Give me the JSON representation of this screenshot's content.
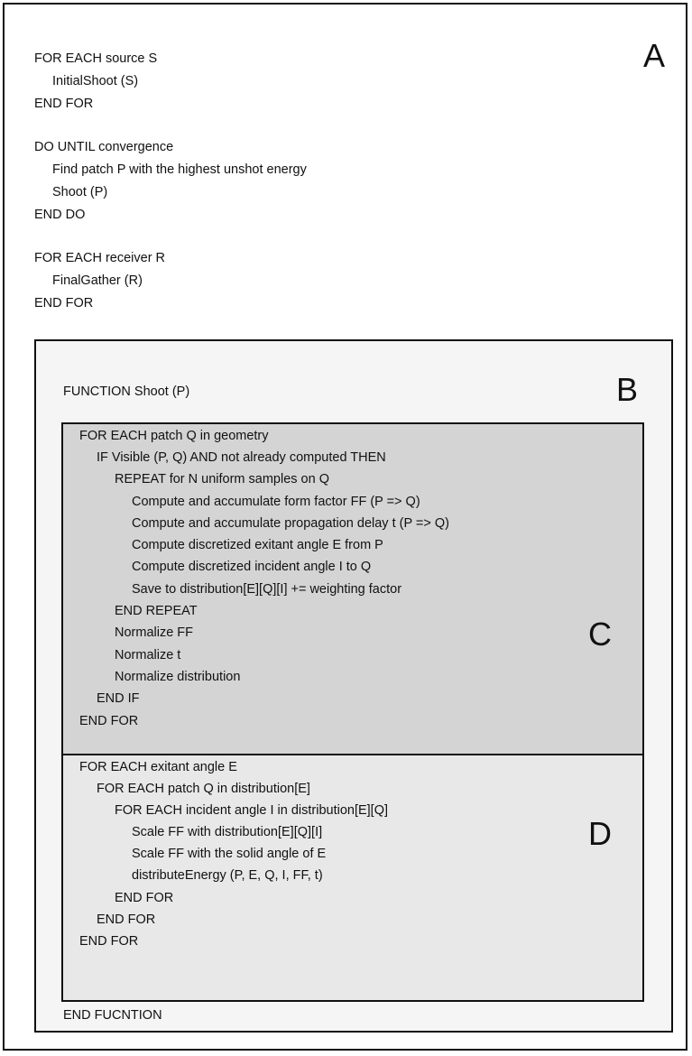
{
  "panels": {
    "a": {
      "letter": "A",
      "lines": [
        "FOR EACH source S",
        "InitialShoot (S)",
        "END FOR",
        "DO UNTIL convergence",
        "Find patch P with the highest unshot energy",
        "Shoot (P)",
        "END DO",
        "FOR EACH receiver R",
        "FinalGather (R)",
        "END FOR"
      ]
    },
    "b": {
      "letter": "B",
      "header": "FUNCTION Shoot (P)",
      "footer": "END FUCNTION"
    },
    "c": {
      "letter": "C",
      "lines": [
        "FOR EACH patch Q in geometry",
        "IF Visible (P, Q) AND not already computed THEN",
        "REPEAT for N uniform samples on Q",
        "Compute and accumulate form factor FF (P => Q)",
        "Compute and accumulate propagation delay t (P => Q)",
        "Compute discretized exitant angle E from P",
        "Compute discretized incident angle I to Q",
        "Save to distribution[E][Q][I] += weighting factor",
        "END REPEAT",
        "Normalize FF",
        "Normalize t",
        "Normalize distribution",
        "END IF",
        "END FOR"
      ]
    },
    "d": {
      "letter": "D",
      "lines": [
        "FOR EACH exitant angle E",
        "FOR EACH patch Q in distribution[E]",
        "FOR EACH incident angle I in distribution[E][Q]",
        "Scale FF with distribution[E][Q][I]",
        "Scale FF with the solid angle of E",
        "distributeEnergy (P, E, Q, I, FF, t)",
        "END FOR",
        "END FOR",
        "END FOR"
      ]
    }
  }
}
